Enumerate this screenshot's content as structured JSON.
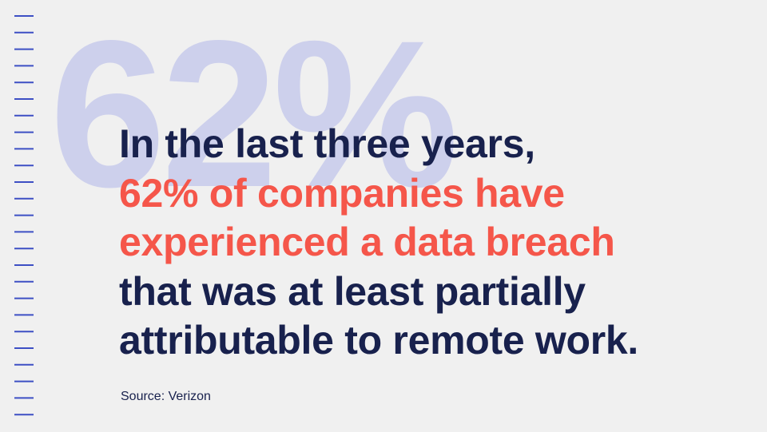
{
  "background_stat": "62%",
  "statement": {
    "lines": [
      {
        "text": "In the last three years,",
        "color": "#18214d"
      },
      {
        "text": "62% of companies have",
        "color": "#f5564a"
      },
      {
        "text": "experienced a data breach",
        "color": "#f5564a"
      },
      {
        "text": "that was at least partially",
        "color": "#18214d"
      },
      {
        "text": "attributable to remote work.",
        "color": "#18214d"
      }
    ]
  },
  "source": "Source: Verizon"
}
